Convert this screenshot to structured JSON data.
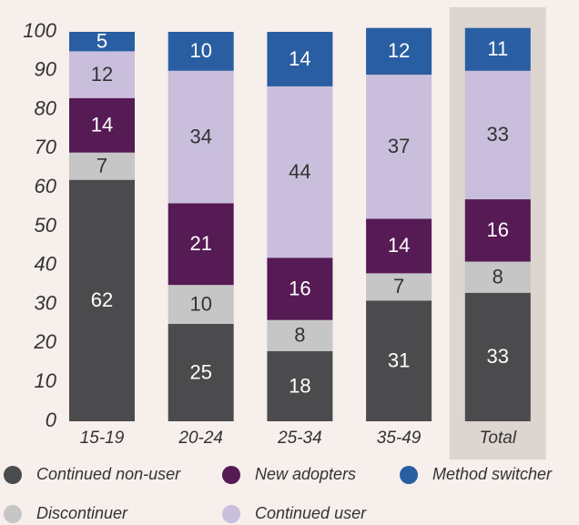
{
  "chart_data": {
    "type": "stacked_bar",
    "categories": [
      "15-19",
      "20-24",
      "25-34",
      "35-49",
      "Total"
    ],
    "series": [
      {
        "name": "Continued non-user",
        "color": "#4b4b4d",
        "values": [
          62,
          25,
          18,
          31,
          33
        ]
      },
      {
        "name": "Discontinuer",
        "color": "#c6c6c6",
        "values": [
          7,
          10,
          8,
          7,
          8
        ]
      },
      {
        "name": "New adopters",
        "color": "#561a55",
        "values": [
          14,
          21,
          16,
          14,
          16
        ]
      },
      {
        "name": "Continued user",
        "color": "#c9bfdd",
        "values": [
          12,
          34,
          44,
          37,
          33
        ]
      },
      {
        "name": "Method switcher",
        "color": "#2a5ea2",
        "values": [
          5,
          10,
          14,
          12,
          11
        ]
      }
    ],
    "ylim": [
      0,
      100
    ],
    "yticks": [
      0,
      10,
      20,
      30,
      40,
      50,
      60,
      70,
      80,
      90,
      100
    ],
    "highlight_category": "Total",
    "highlight_color": "#dcd5d0"
  }
}
